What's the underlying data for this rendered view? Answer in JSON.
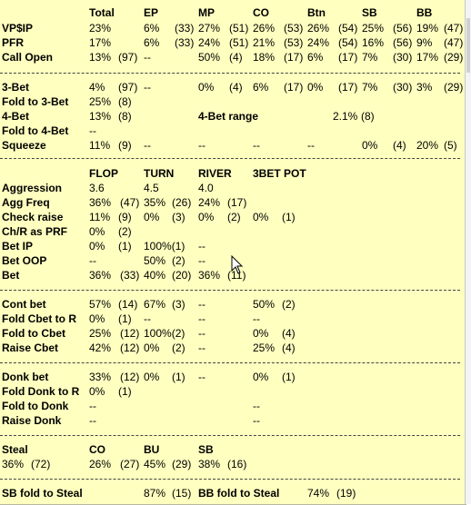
{
  "header": {
    "total": "Total",
    "ep": "EP",
    "mp": "MP",
    "co": "CO",
    "btn": "Btn",
    "sb": "SB",
    "bb": "BB"
  },
  "preflop": {
    "vpip": {
      "label": "VP$IP",
      "total": "23%",
      "ep": "6%",
      "ep_n": "(33)",
      "mp": "27%",
      "mp_n": "(51)",
      "co": "26%",
      "co_n": "(53)",
      "btn": "26%",
      "btn_n": "(54)",
      "sb": "25%",
      "sb_n": "(56)",
      "bb": "19%",
      "bb_n": "(47)"
    },
    "pfr": {
      "label": "PFR",
      "total": "17%",
      "ep": "6%",
      "ep_n": "(33)",
      "mp": "24%",
      "mp_n": "(51)",
      "co": "21%",
      "co_n": "(53)",
      "btn": "24%",
      "btn_n": "(54)",
      "sb": "16%",
      "sb_n": "(56)",
      "bb": "9%",
      "bb_n": "(47)"
    },
    "call_open": {
      "label": "Call Open",
      "total": "13%",
      "total_n": "(97)",
      "ep": "--",
      "mp": "50%",
      "mp_n": "(4)",
      "co": "18%",
      "co_n": "(17)",
      "btn": "6%",
      "btn_n": "(17)",
      "sb": "7%",
      "sb_n": "(30)",
      "bb": "17%",
      "bb_n": "(29)"
    }
  },
  "threebet": {
    "three_bet": {
      "label": "3-Bet",
      "total": "4%",
      "total_n": "(97)",
      "ep": "--",
      "mp": "0%",
      "mp_n": "(4)",
      "co": "6%",
      "co_n": "(17)",
      "btn": "0%",
      "btn_n": "(17)",
      "sb": "7%",
      "sb_n": "(30)",
      "bb": "3%",
      "bb_n": "(29)"
    },
    "fold_to_3bet": {
      "label": "Fold to 3-Bet",
      "total": "25%",
      "total_n": "(8)"
    },
    "four_bet": {
      "label": "4-Bet",
      "total": "13%",
      "total_n": "(8)",
      "range_label": "4-Bet range",
      "range_val": "2.1%",
      "range_n": "(8)"
    },
    "fold_to_4bet": {
      "label": "Fold to 4-Bet",
      "total": "--"
    },
    "squeeze": {
      "label": "Squeeze",
      "total": "11%",
      "total_n": "(9)",
      "ep": "--",
      "mp": "--",
      "co": "--",
      "btn": "--",
      "sb": "0%",
      "sb_n": "(4)",
      "bb": "20%",
      "bb_n": "(5)"
    }
  },
  "post_header": {
    "flop": "FLOP",
    "turn": "TURN",
    "river": "RIVER",
    "threebet_pot": "3BET POT"
  },
  "postflop": {
    "aggression": {
      "label": "Aggression",
      "flop": "3.6",
      "turn": "4.5",
      "river": "4.0"
    },
    "agg_freq": {
      "label": "Agg Freq",
      "flop": "36%",
      "flop_n": "(47)",
      "turn": "35%",
      "turn_n": "(26)",
      "river": "24%",
      "river_n": "(17)"
    },
    "check_raise": {
      "label": "Check raise",
      "flop": "11%",
      "flop_n": "(9)",
      "turn": "0%",
      "turn_n": "(3)",
      "river": "0%",
      "river_n": "(2)",
      "pot": "0%",
      "pot_n": "(1)"
    },
    "chr_prf": {
      "label": "Ch/R as PRF",
      "flop": "0%",
      "flop_n": "(2)"
    },
    "bet_ip": {
      "label": "Bet IP",
      "flop": "0%",
      "flop_n": "(1)",
      "turn": "100%(1)",
      "river": "--"
    },
    "bet_oop": {
      "label": "Bet OOP",
      "flop": "--",
      "turn": "50%",
      "turn_n": "(2)",
      "river": "--"
    },
    "bet": {
      "label": "Bet",
      "flop": "36%",
      "flop_n": "(33)",
      "turn": "40%",
      "turn_n": "(20)",
      "river": "36%",
      "river_n": "(11)"
    }
  },
  "cbet": {
    "cont_bet": {
      "label": "Cont bet",
      "flop": "57%",
      "flop_n": "(14)",
      "turn": "67%",
      "turn_n": "(3)",
      "river": "--",
      "pot": "50%",
      "pot_n": "(2)"
    },
    "fold_cbet_r": {
      "label": "Fold Cbet to R",
      "flop": "0%",
      "flop_n": "(1)",
      "turn": "--",
      "river": "--",
      "pot": "--"
    },
    "fold_cbet": {
      "label": "Fold to Cbet",
      "flop": "25%",
      "flop_n": "(12)",
      "turn": "100%(2)",
      "river": "--",
      "pot": "0%",
      "pot_n": "(4)"
    },
    "raise_cbet": {
      "label": "Raise Cbet",
      "flop": "42%",
      "flop_n": "(12)",
      "turn": "0%",
      "turn_n": "(2)",
      "river": "--",
      "pot": "25%",
      "pot_n": "(4)"
    }
  },
  "donk": {
    "donk_bet": {
      "label": "Donk bet",
      "flop": "33%",
      "flop_n": "(12)",
      "turn": "0%",
      "turn_n": "(1)",
      "river": "--",
      "pot": "0%",
      "pot_n": "(1)"
    },
    "fold_donk_r": {
      "label": "Fold Donk to R",
      "flop": "0%",
      "flop_n": "(1)"
    },
    "fold_donk": {
      "label": "Fold to Donk",
      "flop": "--",
      "pot": "--"
    },
    "raise_donk": {
      "label": "Raise Donk",
      "flop": "--",
      "pot": "--"
    }
  },
  "steal": {
    "label": "Steal",
    "total": "36%",
    "total_n": "(72)",
    "co_label": "CO",
    "co": "26%",
    "co_n": "(27)",
    "bu_label": "BU",
    "bu": "45%",
    "bu_n": "(29)",
    "sb_label": "SB",
    "sb": "38%",
    "sb_n": "(16)"
  },
  "fold_steal": {
    "sb_label": "SB fold to Steal",
    "sb": "87%",
    "sb_n": "(15)",
    "bb_label": "BB fold to Steal",
    "bb": "74%",
    "bb_n": "(19)"
  }
}
